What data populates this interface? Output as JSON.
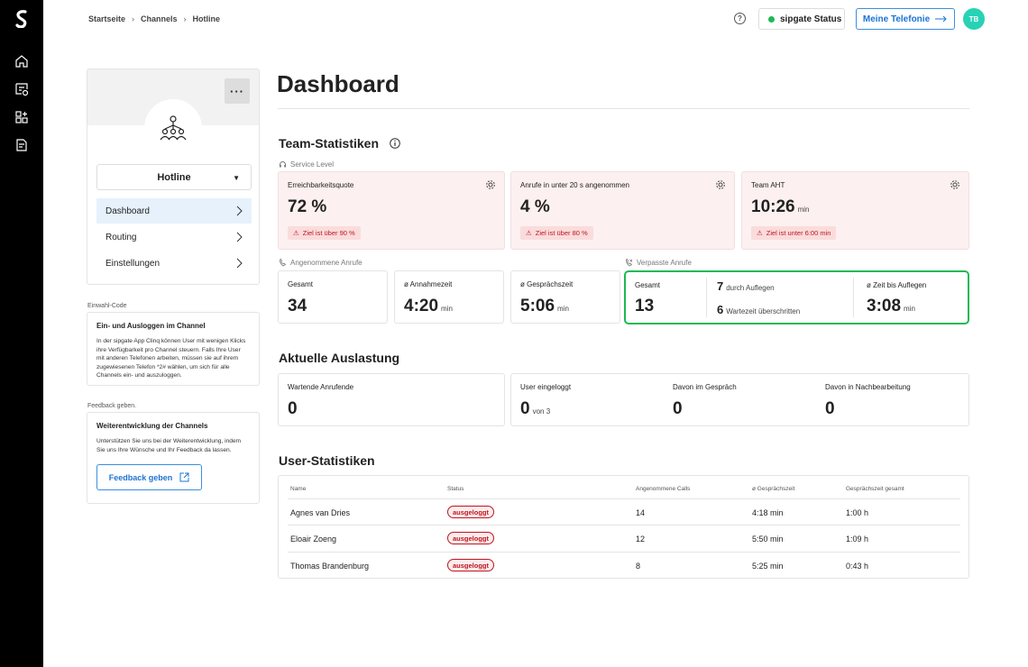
{
  "breadcrumb": [
    "Startseite",
    "Channels",
    "Hotline"
  ],
  "header": {
    "help_icon": "?",
    "status_label": "sipgate Status",
    "status_color": "#1eb955",
    "telefonie_label": "Meine Telefonie",
    "avatar_initials": "TB"
  },
  "channel": {
    "name": "Hotline",
    "more_label": "···",
    "nav": [
      {
        "label": "Dashboard",
        "active": true
      },
      {
        "label": "Routing"
      },
      {
        "label": "Einstellungen"
      }
    ]
  },
  "sidebar": {
    "einwahl_caption": "Einwahl-Code",
    "einwahl_title": "Ein- und Ausloggen im Channel",
    "einwahl_text": "In der sipgate App Clinq können User mit wenigen Klicks ihre Verfügbarkeit pro Channel steuern. Falls Ihre User mit anderen Telefonen arbeiten, müssen sie auf ihrem zugewiesenen Telefon *2# wählen, um sich für alle Channels ein- und auszuloggen.",
    "feedback_caption": "Feedback geben.",
    "feedback_title": "Weiterentwicklung der Channels",
    "feedback_text": "Unterstützen Sie uns bei der Weiterentwicklung, indem Sie uns Ihre Wünsche und Ihr Feedback da lassen.",
    "feedback_button": "Feedback geben"
  },
  "dashboard": {
    "title": "Dashboard",
    "team_heading": "Team-Statistiken",
    "service_level_caption": "Service Level",
    "service_level": [
      {
        "label": "Erreichbarkeitsquote",
        "value": "72 %",
        "unit": "",
        "warning": "Ziel ist über 90 %"
      },
      {
        "label": "Anrufe in unter 20 s angenommen",
        "value": "4 %",
        "unit": "",
        "warning": "Ziel ist über 80 %"
      },
      {
        "label": "Team AHT",
        "value": "10:26",
        "unit": "min",
        "warning": "Ziel ist unter 6:00 min"
      }
    ],
    "accepted_caption": "Angenommene Anrufe",
    "accepted": [
      {
        "label": "Gesamt",
        "value": "34",
        "unit": ""
      },
      {
        "label": "ø Annahmezeit",
        "value": "4:20",
        "unit": "min"
      },
      {
        "label": "ø Gesprächszeit",
        "value": "5:06",
        "unit": "min"
      }
    ],
    "missed_caption": "Verpasste Anrufe",
    "missed": {
      "total_label": "Gesamt",
      "total_value": "13",
      "hangup_value": "7",
      "hangup_label": "durch Auflegen",
      "wait_value": "6",
      "wait_label": "Wartezeit überschritten",
      "avg_label": "ø Zeit bis Auflegen",
      "avg_value": "3:08",
      "avg_unit": "min",
      "highlight_color": "#1eb955"
    },
    "load_heading": "Aktuelle Auslastung",
    "load": {
      "waiting_label": "Wartende Anrufende",
      "waiting_value": "0",
      "logged_label": "User eingeloggt",
      "logged_value": "0",
      "logged_of": "von 3",
      "talk_label": "Davon im Gespräch",
      "talk_value": "0",
      "post_label": "Davon in Nachbearbeitung",
      "post_value": "0"
    },
    "user_heading": "User-Statistiken",
    "table": {
      "headers": [
        "Name",
        "Status",
        "Angenommene Calls",
        "ø Gesprächszeit",
        "Gesprächszeit gesamt"
      ],
      "rows": [
        [
          "Agnes van Dries",
          "ausgeloggt",
          "14",
          "4:18 min",
          "1:00 h"
        ],
        [
          "Eloair Zoeng",
          "ausgeloggt",
          "12",
          "5:50 min",
          "1:09 h"
        ],
        [
          "Thomas Brandenburg",
          "ausgeloggt",
          "8",
          "5:25 min",
          "0:43 h"
        ]
      ]
    }
  }
}
